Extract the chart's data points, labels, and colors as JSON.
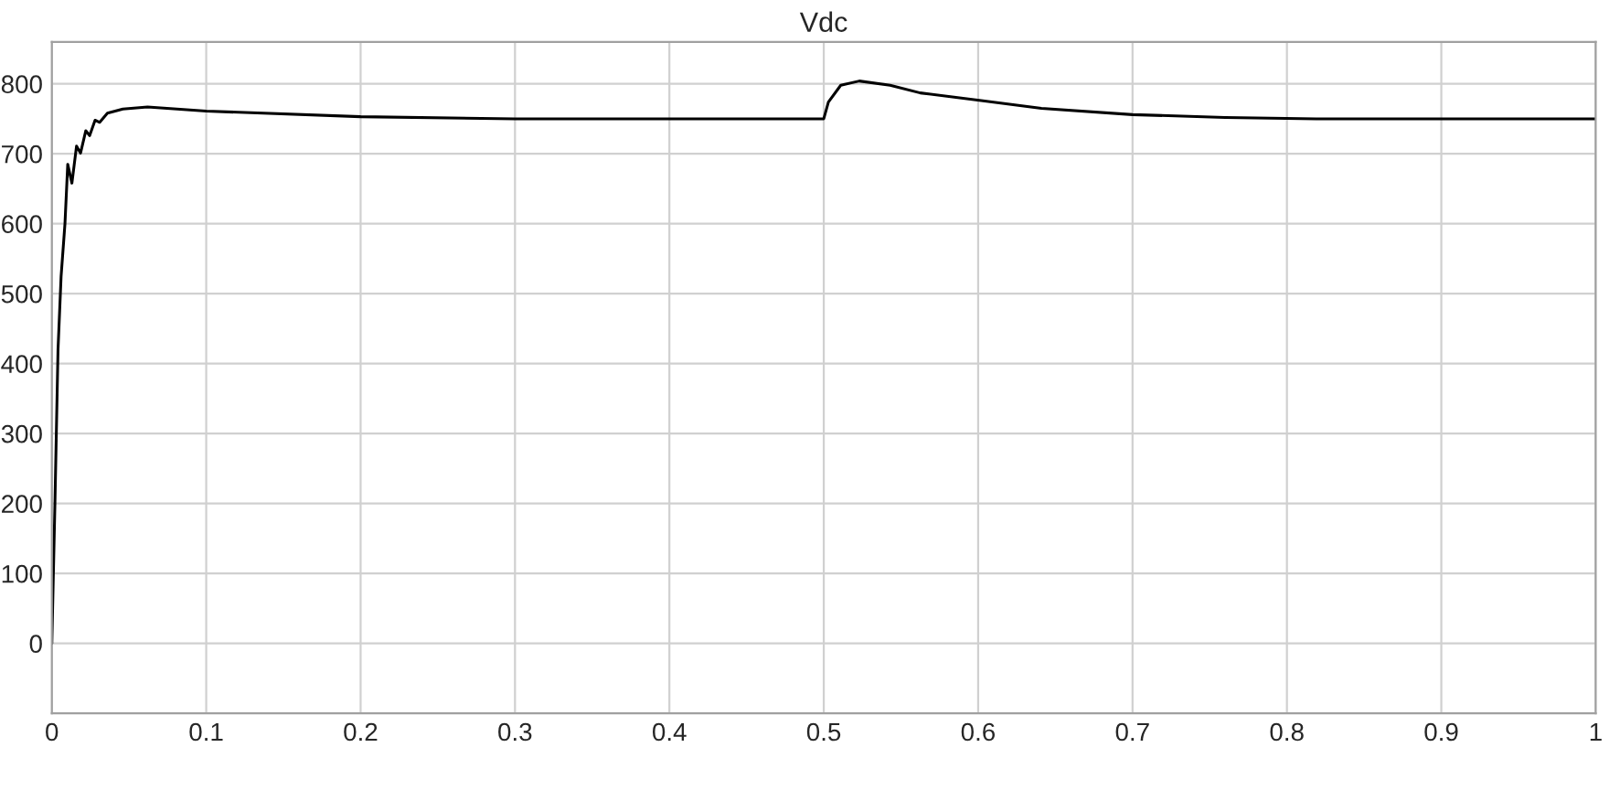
{
  "chart_data": {
    "type": "line",
    "title": "Vdc",
    "x": [
      0,
      0.002,
      0.004,
      0.006,
      0.0085,
      0.0103,
      0.013,
      0.016,
      0.0186,
      0.022,
      0.0245,
      0.028,
      0.031,
      0.036,
      0.046,
      0.062,
      0.1,
      0.2,
      0.3,
      0.4,
      0.5,
      0.503,
      0.511,
      0.523,
      0.543,
      0.5625,
      0.602,
      0.641,
      0.7,
      0.76,
      0.819,
      0.9,
      1.0
    ],
    "series": [
      {
        "color": "#000000",
        "values": [
          0,
          200,
          420,
          525,
          600,
          685,
          658,
          711,
          701,
          733,
          726,
          748,
          745,
          758,
          764,
          767,
          761,
          753,
          750,
          750,
          750,
          774,
          798,
          804,
          798,
          787,
          776,
          765,
          756,
          752,
          750,
          750,
          750
        ]
      }
    ],
    "xlim": [
      0,
      1
    ],
    "xticks": [
      0,
      0.1,
      0.2,
      0.3,
      0.4,
      0.5,
      0.6,
      0.7,
      0.8,
      0.9,
      1
    ],
    "ylim": [
      -100,
      860
    ],
    "yticks": [
      0,
      100,
      200,
      300,
      400,
      500,
      600,
      700,
      800
    ],
    "grid": true
  }
}
